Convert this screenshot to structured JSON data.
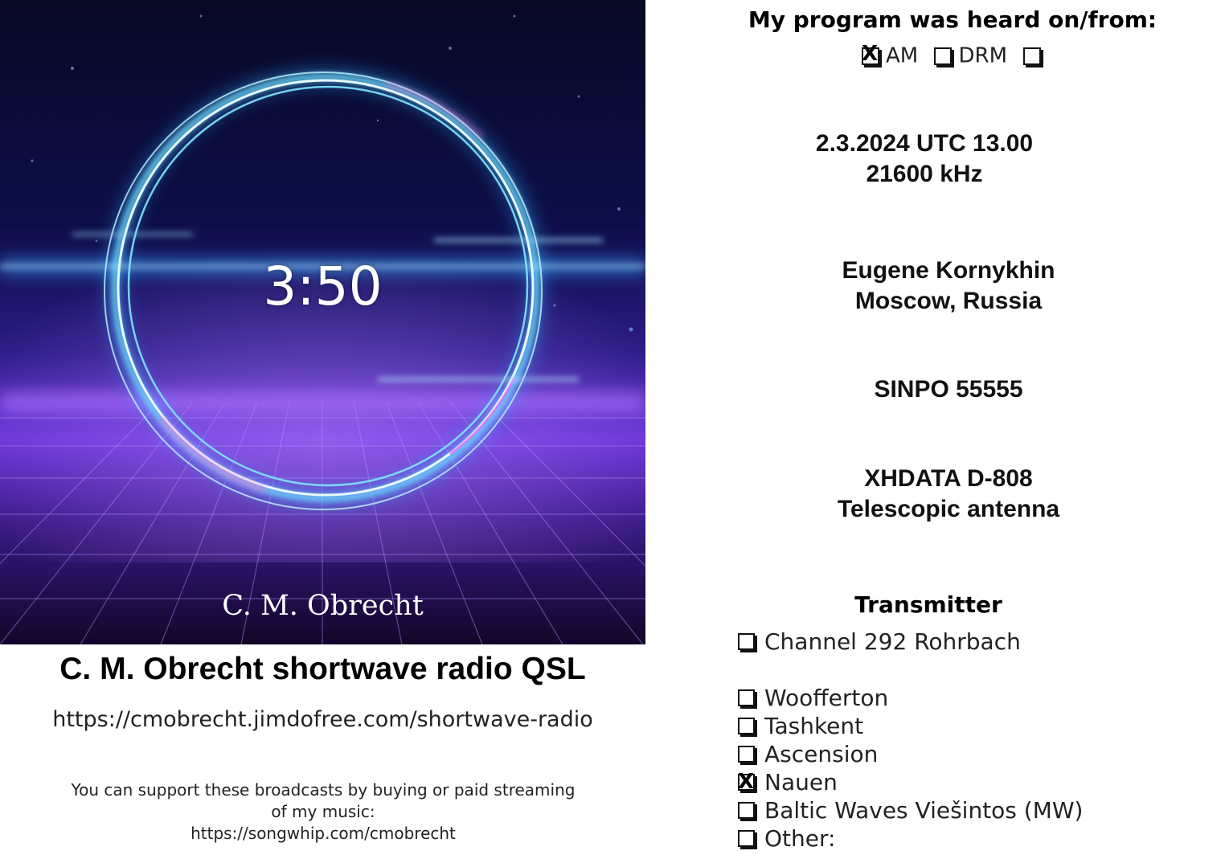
{
  "artwork": {
    "time": "3:50",
    "artist": "C. M. Obrecht",
    "colors": {
      "sky_top": "#0a0b3a",
      "sky_mid": "#2a1a7a",
      "glow_purple": "#8a3cff",
      "ring_cyan": "#4fd8ff",
      "ring_pink": "#ff6ad5"
    }
  },
  "qsl": {
    "title": "C. M. Obrecht shortwave radio QSL",
    "url": "https://cmobrecht.jimdofree.com/shortwave-radio",
    "support_line1": "You can support these broadcasts by buying or paid streaming",
    "support_line2": "of my music:",
    "support_line3": "https://songwhip.com/cmobrecht"
  },
  "report": {
    "heading": "My program was heard on/from:",
    "modes": [
      {
        "label": "AM",
        "checked": true
      },
      {
        "label": "DRM",
        "checked": false
      },
      {
        "label": "",
        "checked": false
      }
    ],
    "date_time": "2.3.2024 UTC 13.00",
    "frequency": "21600 kHz",
    "listener_name": "Eugene Kornykhin",
    "listener_location": "Moscow, Russia",
    "sinpo": "SINPO 55555",
    "receiver": "XHDATA D-808",
    "antenna": "Telescopic antenna"
  },
  "transmitter": {
    "heading": "Transmitter",
    "options": [
      {
        "label": "Channel 292 Rohrbach",
        "checked": false
      },
      {
        "label": "Woofferton",
        "checked": false
      },
      {
        "label": "Tashkent",
        "checked": false
      },
      {
        "label": "Ascension",
        "checked": false
      },
      {
        "label": "Nauen",
        "checked": true
      },
      {
        "label": "Baltic Waves Viešintos (MW)",
        "checked": false
      },
      {
        "label": "Other:",
        "checked": false
      }
    ]
  }
}
